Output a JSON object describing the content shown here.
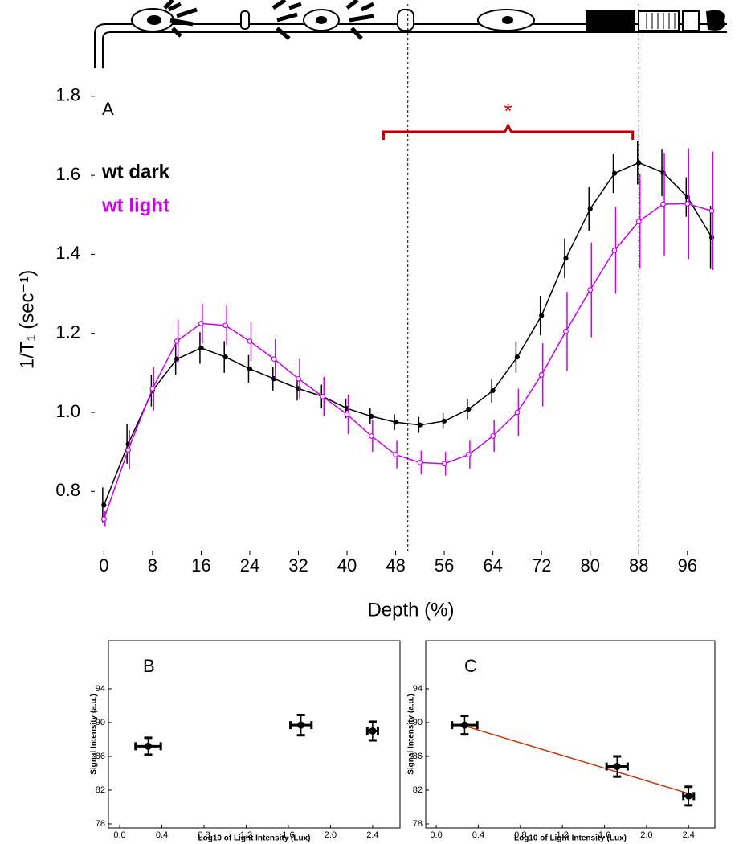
{
  "chart_data": [
    {
      "type": "line",
      "panel_label": "A",
      "x_label": "Depth (%)",
      "y_label": "1/T₁ (sec⁻¹)",
      "x": [
        0,
        4,
        8,
        12,
        16,
        20,
        24,
        28,
        32,
        36,
        40,
        44,
        48,
        52,
        56,
        60,
        64,
        68,
        72,
        76,
        80,
        84,
        88,
        92,
        96,
        100
      ],
      "series": [
        {
          "name": "wt dark",
          "color": "#000000",
          "marker": "filled",
          "values": [
            0.765,
            0.92,
            1.055,
            1.135,
            1.163,
            1.14,
            1.11,
            1.085,
            1.06,
            1.04,
            1.01,
            0.99,
            0.975,
            0.968,
            0.978,
            1.008,
            1.055,
            1.14,
            1.245,
            1.39,
            1.515,
            1.605,
            1.632,
            1.607,
            1.545,
            1.443
          ],
          "errors": [
            0.045,
            0.05,
            0.04,
            0.04,
            0.04,
            0.04,
            0.035,
            0.03,
            0.03,
            0.03,
            0.025,
            0.02,
            0.02,
            0.02,
            0.02,
            0.025,
            0.03,
            0.04,
            0.05,
            0.05,
            0.055,
            0.05,
            0.055,
            0.06,
            0.05,
            0.08
          ]
        },
        {
          "name": "wt light",
          "color": "#cc00ee",
          "marker": "open",
          "values": [
            0.73,
            0.905,
            1.06,
            1.18,
            1.225,
            1.22,
            1.18,
            1.135,
            1.085,
            1.04,
            0.995,
            0.94,
            0.893,
            0.873,
            0.87,
            0.893,
            0.94,
            1.0,
            1.095,
            1.205,
            1.31,
            1.41,
            1.483,
            1.527,
            1.528,
            1.51
          ],
          "errors": [
            0.02,
            0.05,
            0.055,
            0.055,
            0.05,
            0.05,
            0.05,
            0.05,
            0.05,
            0.05,
            0.05,
            0.04,
            0.035,
            0.03,
            0.03,
            0.035,
            0.04,
            0.06,
            0.08,
            0.1,
            0.12,
            0.11,
            0.12,
            0.13,
            0.14,
            0.15
          ]
        }
      ],
      "xlim": [
        -1.5,
        102.5
      ],
      "ylim": [
        0.65,
        1.82
      ],
      "xticks": [
        0,
        8,
        16,
        24,
        32,
        40,
        48,
        56,
        64,
        72,
        80,
        88,
        96
      ],
      "yticks": [
        0.8,
        {
          "value": 1.0,
          "label": "1.0"
        },
        1.2,
        1.4,
        1.6,
        1.8
      ],
      "vlines": [
        50,
        88
      ],
      "bracket": {
        "label": "*",
        "x": [
          46,
          87
        ],
        "y": 1.71,
        "color": "#c00000"
      }
    },
    {
      "type": "scatter",
      "panel_label": "B",
      "x_label": "Log10 of Light Intensity (Lux)",
      "y_label": "Signal Intensity (a.u.)",
      "x": [
        0.27,
        1.72,
        2.4
      ],
      "values": [
        87.2,
        89.7,
        89.0
      ],
      "xerr": [
        0.12,
        0.1,
        0.05
      ],
      "yerr": [
        1.0,
        1.2,
        1.1
      ],
      "color": "#000000",
      "xlim": [
        -0.107,
        2.66
      ],
      "ylim": [
        77.52,
        99.71
      ],
      "xticks": [
        {
          "value": 0.0,
          "label": "0.0"
        },
        0.4,
        0.8,
        1.2,
        1.6,
        {
          "value": 2.0,
          "label": "2.0"
        },
        2.4
      ],
      "yticks": [
        78,
        82,
        86,
        90,
        94
      ]
    },
    {
      "type": "scatter",
      "panel_label": "C",
      "x_label": "Log10 of Light Intensity (Lux)",
      "y_label": "Signal Intensity (a.u.)",
      "x": [
        0.27,
        1.72,
        2.4
      ],
      "values": [
        89.7,
        84.8,
        81.3
      ],
      "xerr": [
        0.12,
        0.1,
        0.05
      ],
      "yerr": [
        1.1,
        1.2,
        1.1
      ],
      "color": "#000000",
      "fit": {
        "x": [
          0.27,
          2.4
        ],
        "values": [
          89.6,
          81.6
        ],
        "color": "#cc3300"
      },
      "xlim": [
        -0.1,
        2.65
      ],
      "ylim": [
        77.52,
        99.71
      ],
      "xticks": [
        {
          "value": 0.0,
          "label": "0.0"
        },
        0.4,
        0.8,
        1.2,
        1.6,
        {
          "value": 2.0,
          "label": "2.0"
        },
        2.4
      ],
      "yticks": [
        78,
        82,
        86,
        90,
        94
      ]
    }
  ]
}
